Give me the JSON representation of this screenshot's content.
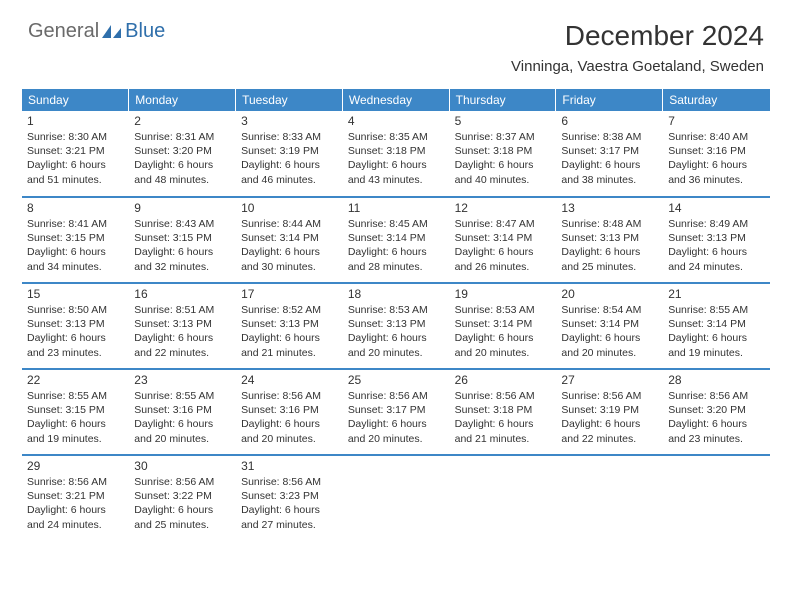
{
  "brand": {
    "part1": "General",
    "part2": "Blue"
  },
  "title": "December 2024",
  "location": "Vinninga, Vaestra Goetaland, Sweden",
  "colors": {
    "header_bg": "#3d87c7",
    "header_text": "#ffffff",
    "border": "#3d87c7",
    "text": "#333333",
    "logo_gray": "#6a6a6a",
    "logo_blue": "#2f6fab"
  },
  "weekdays": [
    "Sunday",
    "Monday",
    "Tuesday",
    "Wednesday",
    "Thursday",
    "Friday",
    "Saturday"
  ],
  "days": [
    {
      "n": 1,
      "sr": "8:30 AM",
      "ss": "3:21 PM",
      "dl": "6 hours and 51 minutes."
    },
    {
      "n": 2,
      "sr": "8:31 AM",
      "ss": "3:20 PM",
      "dl": "6 hours and 48 minutes."
    },
    {
      "n": 3,
      "sr": "8:33 AM",
      "ss": "3:19 PM",
      "dl": "6 hours and 46 minutes."
    },
    {
      "n": 4,
      "sr": "8:35 AM",
      "ss": "3:18 PM",
      "dl": "6 hours and 43 minutes."
    },
    {
      "n": 5,
      "sr": "8:37 AM",
      "ss": "3:18 PM",
      "dl": "6 hours and 40 minutes."
    },
    {
      "n": 6,
      "sr": "8:38 AM",
      "ss": "3:17 PM",
      "dl": "6 hours and 38 minutes."
    },
    {
      "n": 7,
      "sr": "8:40 AM",
      "ss": "3:16 PM",
      "dl": "6 hours and 36 minutes."
    },
    {
      "n": 8,
      "sr": "8:41 AM",
      "ss": "3:15 PM",
      "dl": "6 hours and 34 minutes."
    },
    {
      "n": 9,
      "sr": "8:43 AM",
      "ss": "3:15 PM",
      "dl": "6 hours and 32 minutes."
    },
    {
      "n": 10,
      "sr": "8:44 AM",
      "ss": "3:14 PM",
      "dl": "6 hours and 30 minutes."
    },
    {
      "n": 11,
      "sr": "8:45 AM",
      "ss": "3:14 PM",
      "dl": "6 hours and 28 minutes."
    },
    {
      "n": 12,
      "sr": "8:47 AM",
      "ss": "3:14 PM",
      "dl": "6 hours and 26 minutes."
    },
    {
      "n": 13,
      "sr": "8:48 AM",
      "ss": "3:13 PM",
      "dl": "6 hours and 25 minutes."
    },
    {
      "n": 14,
      "sr": "8:49 AM",
      "ss": "3:13 PM",
      "dl": "6 hours and 24 minutes."
    },
    {
      "n": 15,
      "sr": "8:50 AM",
      "ss": "3:13 PM",
      "dl": "6 hours and 23 minutes."
    },
    {
      "n": 16,
      "sr": "8:51 AM",
      "ss": "3:13 PM",
      "dl": "6 hours and 22 minutes."
    },
    {
      "n": 17,
      "sr": "8:52 AM",
      "ss": "3:13 PM",
      "dl": "6 hours and 21 minutes."
    },
    {
      "n": 18,
      "sr": "8:53 AM",
      "ss": "3:13 PM",
      "dl": "6 hours and 20 minutes."
    },
    {
      "n": 19,
      "sr": "8:53 AM",
      "ss": "3:14 PM",
      "dl": "6 hours and 20 minutes."
    },
    {
      "n": 20,
      "sr": "8:54 AM",
      "ss": "3:14 PM",
      "dl": "6 hours and 20 minutes."
    },
    {
      "n": 21,
      "sr": "8:55 AM",
      "ss": "3:14 PM",
      "dl": "6 hours and 19 minutes."
    },
    {
      "n": 22,
      "sr": "8:55 AM",
      "ss": "3:15 PM",
      "dl": "6 hours and 19 minutes."
    },
    {
      "n": 23,
      "sr": "8:55 AM",
      "ss": "3:16 PM",
      "dl": "6 hours and 20 minutes."
    },
    {
      "n": 24,
      "sr": "8:56 AM",
      "ss": "3:16 PM",
      "dl": "6 hours and 20 minutes."
    },
    {
      "n": 25,
      "sr": "8:56 AM",
      "ss": "3:17 PM",
      "dl": "6 hours and 20 minutes."
    },
    {
      "n": 26,
      "sr": "8:56 AM",
      "ss": "3:18 PM",
      "dl": "6 hours and 21 minutes."
    },
    {
      "n": 27,
      "sr": "8:56 AM",
      "ss": "3:19 PM",
      "dl": "6 hours and 22 minutes."
    },
    {
      "n": 28,
      "sr": "8:56 AM",
      "ss": "3:20 PM",
      "dl": "6 hours and 23 minutes."
    },
    {
      "n": 29,
      "sr": "8:56 AM",
      "ss": "3:21 PM",
      "dl": "6 hours and 24 minutes."
    },
    {
      "n": 30,
      "sr": "8:56 AM",
      "ss": "3:22 PM",
      "dl": "6 hours and 25 minutes."
    },
    {
      "n": 31,
      "sr": "8:56 AM",
      "ss": "3:23 PM",
      "dl": "6 hours and 27 minutes."
    }
  ],
  "labels": {
    "sunrise": "Sunrise:",
    "sunset": "Sunset:",
    "daylight": "Daylight:"
  }
}
